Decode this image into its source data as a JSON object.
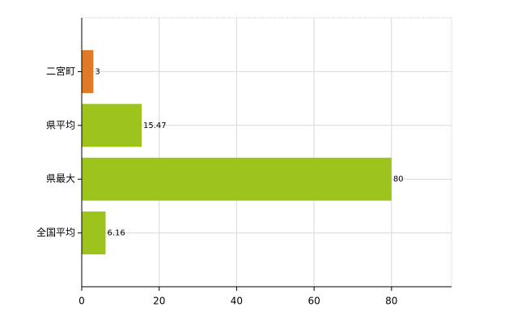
{
  "chart_data": {
    "type": "barh",
    "categories": [
      "二宮町",
      "県平均",
      "県最大",
      "全国平均"
    ],
    "values": [
      3,
      15.47,
      80,
      6.16
    ],
    "colors": [
      "#e07a26",
      "#9cc41c",
      "#9cc41c",
      "#9cc41c"
    ],
    "xlim": [
      0,
      95.5
    ],
    "xticks": [
      0,
      20,
      40,
      60,
      80
    ],
    "grid": true
  }
}
